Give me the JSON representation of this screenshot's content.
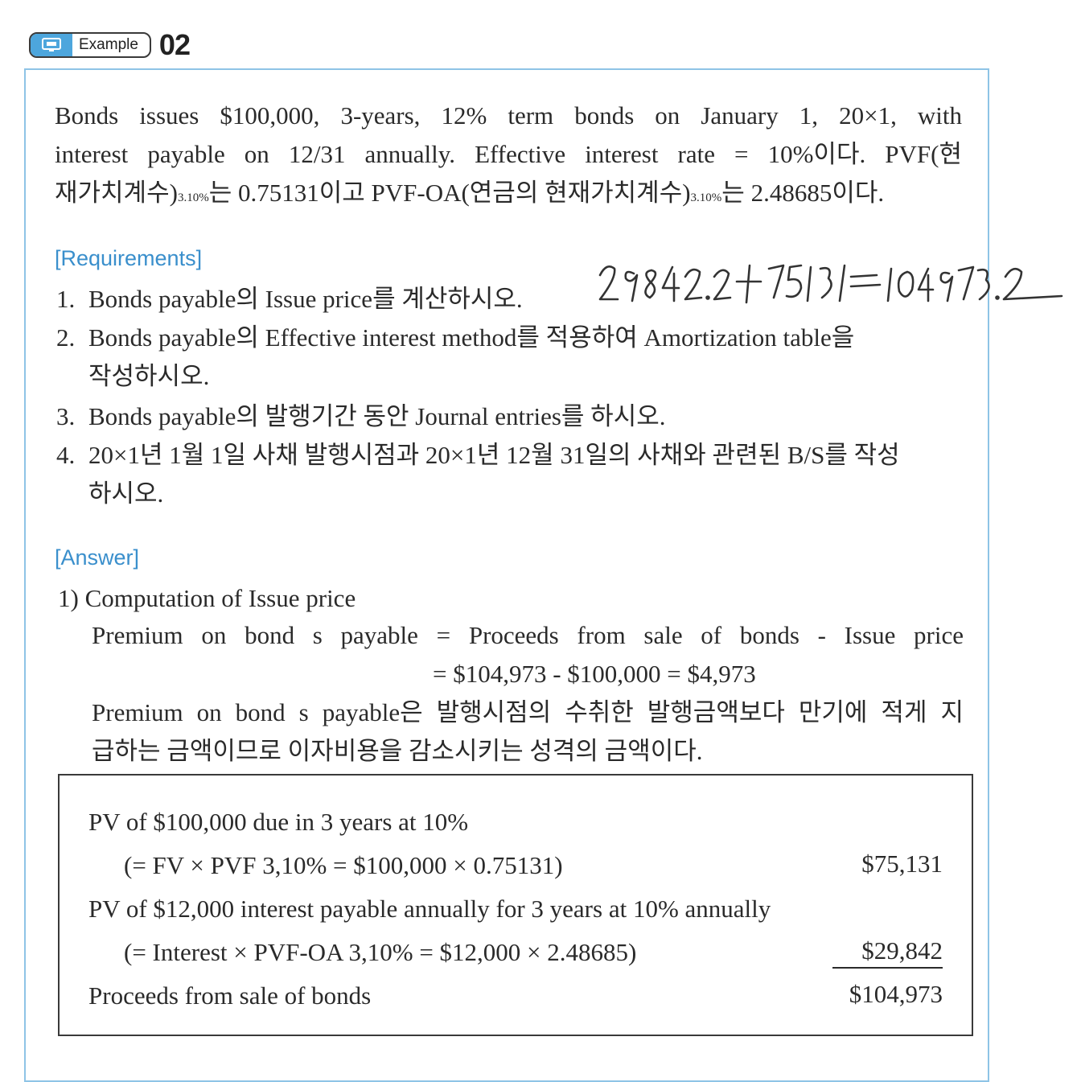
{
  "header": {
    "badge_label": "Example",
    "badge_number": "02"
  },
  "problem": {
    "line1": "Bonds issues $100,000, 3-years, 12% term bonds on January 1, 20×1, with",
    "line2": "interest payable on 12/31 annually. Effective interest rate = 10%이다. PVF(현",
    "line3a": "재가치계수)",
    "line3b": "3.10%",
    "line3c": "는 0.75131이고 PVF-OA(연금의 현재가치계수)",
    "line3d": "3.10%",
    "line3e": "는 2.48685이다."
  },
  "requirements": {
    "title": "[Requirements]",
    "items": [
      {
        "num": "1.",
        "text": "Bonds payable의 Issue price를 계산하시오.",
        "cont": ""
      },
      {
        "num": "2.",
        "text": "Bonds payable의 Effective interest method를 적용하여 Amortization table을",
        "cont": "작성하시오."
      },
      {
        "num": "3.",
        "text": "Bonds payable의 발행기간 동안 Journal entries를 하시오.",
        "cont": ""
      },
      {
        "num": "4.",
        "text": "20×1년 1월 1일 사채 발행시점과 20×1년 12월 31일의 사채와 관련된 B/S를 작성",
        "cont": "하시오."
      }
    ],
    "handwritten_note": "29842.2+75131=104973.2"
  },
  "answer": {
    "title": "[Answer]",
    "heading": "1) Computation of Issue price",
    "formula_line1": "Premium on bond s payable = Proceeds from sale of bonds - Issue price",
    "formula_line2": "= $104,973 - $100,000 = $4,973",
    "note_line1": "Premium on bond s payable은 발행시점의 수취한 발행금액보다 만기에 적게 지",
    "note_line2": "급하는 금액이므로 이자비용을 감소시키는 성격의 금액이다."
  },
  "calculation": {
    "row1": "PV of $100,000 due in 3 years at 10%",
    "row2": "(= FV × PVF 3,10% = $100,000 × 0.75131)",
    "row2_amount": "$75,131",
    "row3": "PV of $12,000 interest payable annually for 3 years at 10% annually",
    "row4": "(= Interest × PVF-OA 3,10% = $12,000 × 2.48685)",
    "row4_amount": "$29,842",
    "row5": "Proceeds from sale of bonds",
    "row5_amount": "$104,973"
  }
}
